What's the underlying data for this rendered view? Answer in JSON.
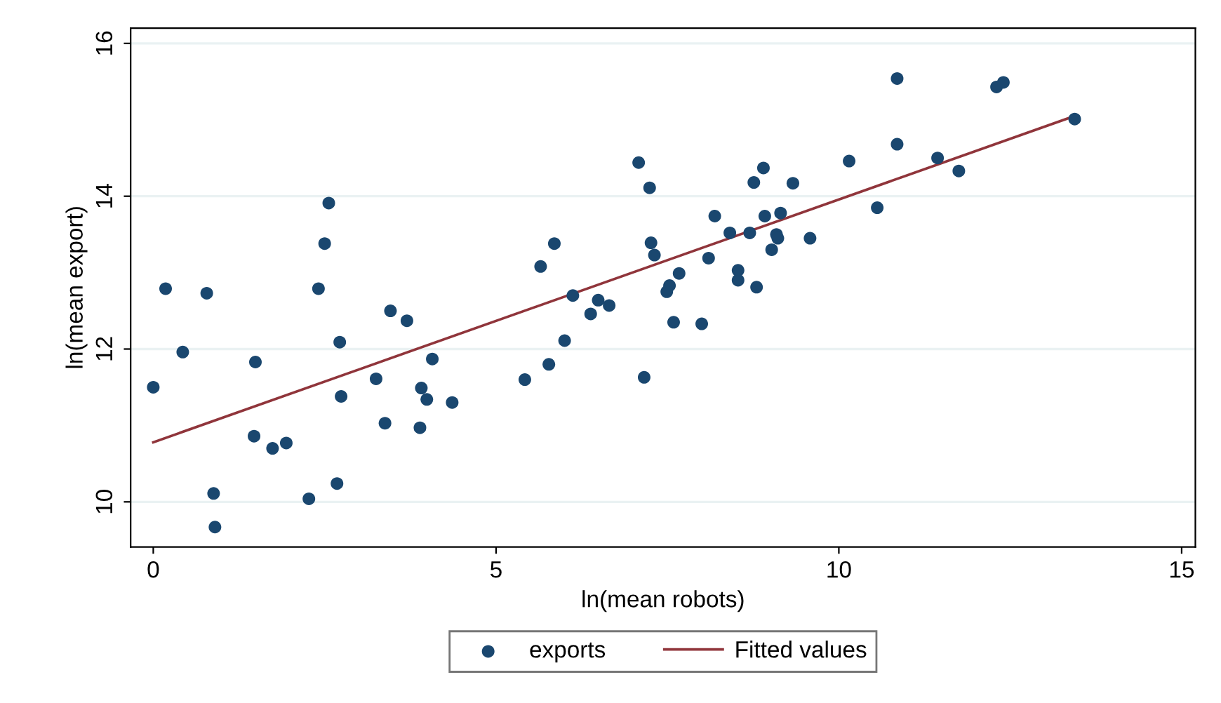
{
  "chart_data": {
    "type": "scatter",
    "xlabel": "ln(mean robots)",
    "ylabel": "ln(mean export)",
    "xlim": [
      -0.33,
      15.2
    ],
    "ylim": [
      9.41,
      16.2
    ],
    "xticks": [
      0,
      5,
      10,
      15
    ],
    "yticks": [
      10,
      12,
      14,
      16
    ],
    "grid": "y",
    "legend": "bottom",
    "series": [
      {
        "name": "exports",
        "color": "#1a476f",
        "marker": "circle",
        "x": [
          0,
          0.18,
          0.43,
          0.78,
          0.88,
          0.9,
          1.47,
          1.49,
          1.74,
          1.94,
          2.27,
          2.41,
          2.5,
          2.56,
          2.68,
          2.72,
          2.74,
          3.25,
          3.38,
          3.46,
          3.7,
          3.89,
          3.91,
          3.99,
          4.07,
          4.36,
          5.42,
          5.77,
          6.0,
          6.12,
          6.38,
          6.49,
          6.65,
          5.65,
          5.85,
          7.08,
          7.24,
          7.16,
          7.26,
          7.31,
          7.67,
          7.53,
          7.49,
          7.59,
          8.0,
          8.1,
          8.19,
          8.41,
          8.53,
          8.53,
          8.8,
          8.7,
          8.76,
          8.9,
          8.92,
          9.15,
          9.09,
          9.11,
          9.02,
          9.33,
          9.58,
          10.15,
          10.56,
          10.85,
          10.85,
          11.44,
          11.75,
          12.3,
          12.4,
          13.44
        ],
        "values": [
          11.5,
          12.79,
          11.96,
          12.73,
          10.11,
          9.67,
          10.86,
          11.83,
          10.7,
          10.77,
          10.04,
          12.79,
          13.38,
          13.91,
          10.24,
          12.09,
          11.38,
          11.61,
          11.03,
          12.5,
          12.37,
          10.97,
          11.49,
          11.34,
          11.87,
          11.3,
          11.6,
          11.8,
          12.11,
          12.7,
          12.46,
          12.64,
          12.57,
          13.08,
          13.38,
          14.44,
          14.11,
          11.63,
          13.39,
          13.23,
          12.99,
          12.83,
          12.75,
          12.35,
          12.33,
          13.19,
          13.74,
          13.52,
          13.03,
          12.9,
          12.81,
          13.52,
          14.18,
          14.37,
          13.74,
          13.78,
          13.5,
          13.45,
          13.3,
          14.17,
          13.45,
          14.46,
          13.85,
          15.54,
          14.68,
          14.5,
          14.33,
          15.43,
          15.49,
          15.01
        ]
      },
      {
        "name": "Fitted values",
        "type": "line",
        "color": "#90353b",
        "x": [
          0,
          13.44
        ],
        "values": [
          10.78,
          15.05
        ],
        "line_style": "solid"
      }
    ]
  }
}
